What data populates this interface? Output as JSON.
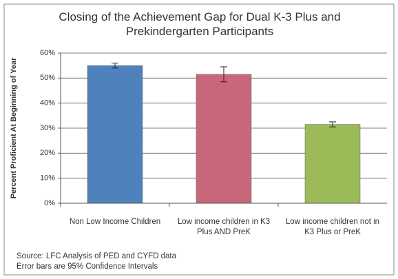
{
  "chart_data": {
    "type": "bar",
    "title": "Closing of the Achievement Gap for Dual K-3 Plus and Prekindergarten Participants",
    "y_label": "Percent Proficient At Beginning of Year",
    "categories": [
      "Non Low Income Children",
      "Low income children in K3 Plus AND PreK",
      "Low income children not in K3 Plus or PreK"
    ],
    "values": [
      55,
      51.5,
      31.5
    ],
    "errors": [
      1,
      3,
      1
    ],
    "colors": [
      "#4f81bd",
      "#c9677a",
      "#9bbb59"
    ],
    "ylim": [
      0,
      60
    ],
    "yticks": [
      {
        "value": 0,
        "label": "0%"
      },
      {
        "value": 10,
        "label": "10%"
      },
      {
        "value": 20,
        "label": "20%"
      },
      {
        "value": 30,
        "label": "30%"
      },
      {
        "value": 40,
        "label": "40%"
      },
      {
        "value": 50,
        "label": "50%"
      },
      {
        "value": 60,
        "label": "60%"
      }
    ],
    "grid": true,
    "annotations": [
      "Source: LFC Analysis of PED and CYFD data",
      "Error bars are 95% Confidence Intervals"
    ]
  }
}
